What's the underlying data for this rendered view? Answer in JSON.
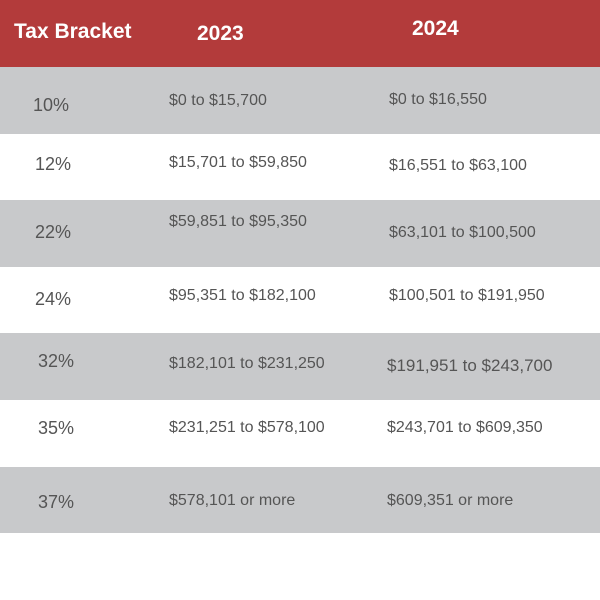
{
  "header": {
    "col0": "Tax Bracket",
    "col1": "2023",
    "col2": "2024"
  },
  "rows": [
    {
      "rate": "10%",
      "y2023": "$0 to $15,700",
      "y2024": "$0 to $16,550"
    },
    {
      "rate": "12%",
      "y2023": "$15,701 to $59,850",
      "y2024": "$16,551 to $63,100"
    },
    {
      "rate": "22%",
      "y2023": "$59,851 to $95,350",
      "y2024": "$63,101 to $100,500"
    },
    {
      "rate": "24%",
      "y2023": "$95,351 to $182,100",
      "y2024": "$100,501 to $191,950"
    },
    {
      "rate": "32%",
      "y2023": "$182,101 to $231,250",
      "y2024": "$191,951 to $243,700"
    },
    {
      "rate": "35%",
      "y2023": "$231,251 to $578,100",
      "y2024": "$243,701 to $609,350"
    },
    {
      "rate": "37%",
      "y2023": "$578,101 or more",
      "y2024": "$609,351 or more"
    }
  ],
  "colors": {
    "header_bg": "#b33b3b",
    "shaded_row": "#c8c9cb",
    "text": "#555555"
  }
}
